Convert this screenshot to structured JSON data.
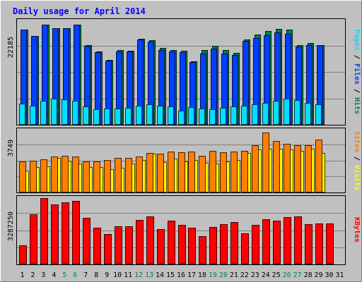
{
  "title": "Daily usage for April 2014",
  "colors": {
    "background": "#c0c0c0",
    "title": "#0000ff",
    "hits": "#008040",
    "files": "#0040ff",
    "pages": "#00e0ff",
    "visits": "#ffff00",
    "sites": "#ff8000",
    "kbytes": "#ff0000",
    "weekend_day": "#00805c",
    "weekday": "#000000"
  },
  "days": [
    "1",
    "2",
    "3",
    "4",
    "5",
    "6",
    "7",
    "8",
    "9",
    "10",
    "11",
    "12",
    "13",
    "14",
    "15",
    "16",
    "17",
    "18",
    "19",
    "20",
    "21",
    "22",
    "23",
    "24",
    "25",
    "26",
    "27",
    "28",
    "29",
    "30",
    "31"
  ],
  "weekend_days": [
    5,
    6,
    12,
    13,
    19,
    20,
    26,
    27
  ],
  "chart_data": [
    {
      "type": "bar",
      "panel": "hits-files-pages",
      "max_label": "22185",
      "ylim": [
        0,
        22185
      ],
      "grid": true,
      "legend": [
        {
          "name": "Hits",
          "color": "#008040"
        },
        {
          "name": "Files",
          "color": "#0040ff"
        },
        {
          "name": "Pages",
          "color": "#00e0ff"
        }
      ],
      "legend_separator": " / ",
      "series": [
        {
          "name": "Hits",
          "values": [
            20900,
            19600,
            22100,
            21300,
            21300,
            22000,
            17600,
            16200,
            14400,
            16500,
            16400,
            19000,
            18700,
            17000,
            16500,
            16400,
            14100,
            16500,
            17500,
            16500,
            15900,
            18900,
            19900,
            20700,
            21100,
            20900,
            17600,
            18100,
            17600,
            null,
            null
          ]
        },
        {
          "name": "Files",
          "values": [
            20600,
            19300,
            21800,
            21000,
            21000,
            21700,
            17200,
            15800,
            14000,
            16000,
            15900,
            18500,
            18100,
            16300,
            15900,
            15800,
            13600,
            15500,
            16500,
            15500,
            15200,
            18200,
            18900,
            19500,
            20000,
            19700,
            17000,
            17300,
            17300,
            null,
            null
          ]
        },
        {
          "name": "Pages",
          "values": [
            4400,
            4000,
            5000,
            5400,
            5300,
            5000,
            3800,
            3200,
            3300,
            3400,
            3500,
            3900,
            4300,
            3900,
            3800,
            2900,
            3700,
            3300,
            3200,
            3500,
            3800,
            3900,
            4200,
            4500,
            5000,
            5400,
            5200,
            4600,
            4300,
            null,
            null
          ]
        }
      ]
    },
    {
      "type": "bar",
      "panel": "visits-sites",
      "max_label": "3749",
      "ylim": [
        0,
        3749
      ],
      "grid": true,
      "legend": [
        {
          "name": "Visits",
          "color": "#ffff00"
        },
        {
          "name": "Sites",
          "color": "#ff8000"
        }
      ],
      "legend_separator": " / ",
      "series": [
        {
          "name": "Visits",
          "values": [
            1480,
            1700,
            1720,
            2240,
            2080,
            1880,
            1660,
            1680,
            1540,
            1640,
            1900,
            2100,
            2520,
            2000,
            2200,
            2040,
            2100,
            1960,
            1880,
            2020,
            2100,
            2560,
            2740,
            2780,
            2780,
            2760,
            2680,
            2800,
            2560,
            null,
            null
          ]
        },
        {
          "name": "Sites",
          "values": [
            1860,
            1900,
            1980,
            2140,
            2180,
            2160,
            1850,
            1850,
            1950,
            2080,
            2070,
            2140,
            2360,
            2320,
            2440,
            2420,
            2460,
            2180,
            2490,
            2400,
            2450,
            2500,
            2860,
            3640,
            3100,
            2940,
            2860,
            2850,
            3210,
            null,
            null
          ]
        }
      ]
    },
    {
      "type": "bar",
      "panel": "kbytes",
      "max_label": "3287250",
      "ylim": [
        0,
        3287250
      ],
      "grid": true,
      "legend": [
        {
          "name": "KBytes",
          "color": "#ff0000"
        }
      ],
      "series": [
        {
          "name": "KBytes",
          "values": [
            930000,
            2490000,
            3270000,
            2960000,
            3080000,
            3150000,
            2290000,
            1810000,
            1490000,
            1890000,
            1890000,
            2200000,
            2380000,
            1720000,
            2170000,
            1930000,
            1810000,
            1380000,
            1840000,
            1980000,
            2070000,
            1510000,
            1960000,
            2240000,
            2140000,
            2350000,
            2380000,
            1970000,
            2000000,
            2000000,
            null
          ]
        }
      ]
    }
  ]
}
